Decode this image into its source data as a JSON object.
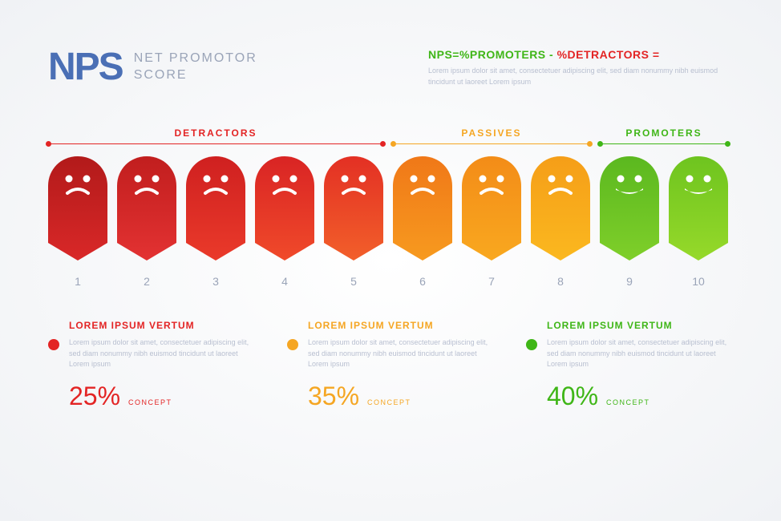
{
  "header": {
    "logo": "NPS",
    "subtitle_line1": "NET PROMOTOR",
    "subtitle_line2": "SCORE",
    "formula_green": "NPS=%PROMOTERS",
    "formula_sep": " - ",
    "formula_red": "%DETRACTORS =",
    "formula_desc": "Lorem ipsum dolor sit amet, consectetuer adipiscing elit, sed diam nonummy nibh euismod tincidunt ut laoreet Lorem ipsum"
  },
  "groups": {
    "detractors": "DETRACTORS",
    "passives": "PASSIVES",
    "promoters": "PROMOTERS"
  },
  "ghosts": [
    {
      "num": "1",
      "g1": "#b21a1a",
      "g2": "#d92828",
      "face": "frown"
    },
    {
      "num": "2",
      "g1": "#c11e1e",
      "g2": "#e33232",
      "face": "frown"
    },
    {
      "num": "3",
      "g1": "#cf2020",
      "g2": "#ea3a2a",
      "face": "frown"
    },
    {
      "num": "4",
      "g1": "#d92424",
      "g2": "#f04a2a",
      "face": "frown"
    },
    {
      "num": "5",
      "g1": "#e33024",
      "g2": "#f25f2a",
      "face": "frown"
    },
    {
      "num": "6",
      "g1": "#f07818",
      "g2": "#f79a1f",
      "face": "frown"
    },
    {
      "num": "7",
      "g1": "#f38c18",
      "g2": "#f9a81f",
      "face": "frown"
    },
    {
      "num": "8",
      "g1": "#f59e18",
      "g2": "#fbb81f",
      "face": "frown"
    },
    {
      "num": "9",
      "g1": "#5bb81f",
      "g2": "#7fcf2a",
      "face": "smile"
    },
    {
      "num": "10",
      "g1": "#6ec41f",
      "g2": "#96d92a",
      "face": "smile"
    }
  ],
  "concepts": [
    {
      "title": "LOREM IPSUM VERTUM",
      "desc": "Lorem ipsum dolor sit amet, consectetuer adipiscing elit, sed diam nonummy nibh euismod tincidunt ut laoreet Lorem ipsum",
      "pct": "25%",
      "label": "CONCEPT",
      "color": "#e32424"
    },
    {
      "title": "LOREM IPSUM VERTUM",
      "desc": "Lorem ipsum dolor sit amet, consectetuer adipiscing elit, sed diam nonummy nibh euismod tincidunt ut laoreet Lorem ipsum",
      "pct": "35%",
      "label": "CONCEPT",
      "color": "#f5a623"
    },
    {
      "title": "LOREM IPSUM VERTUM",
      "desc": "Lorem ipsum dolor sit amet, consectetuer adipiscing elit, sed diam nonummy nibh euismod tincidunt ut laoreet Lorem ipsum",
      "pct": "40%",
      "label": "CONCEPT",
      "color": "#3fb617"
    }
  ]
}
